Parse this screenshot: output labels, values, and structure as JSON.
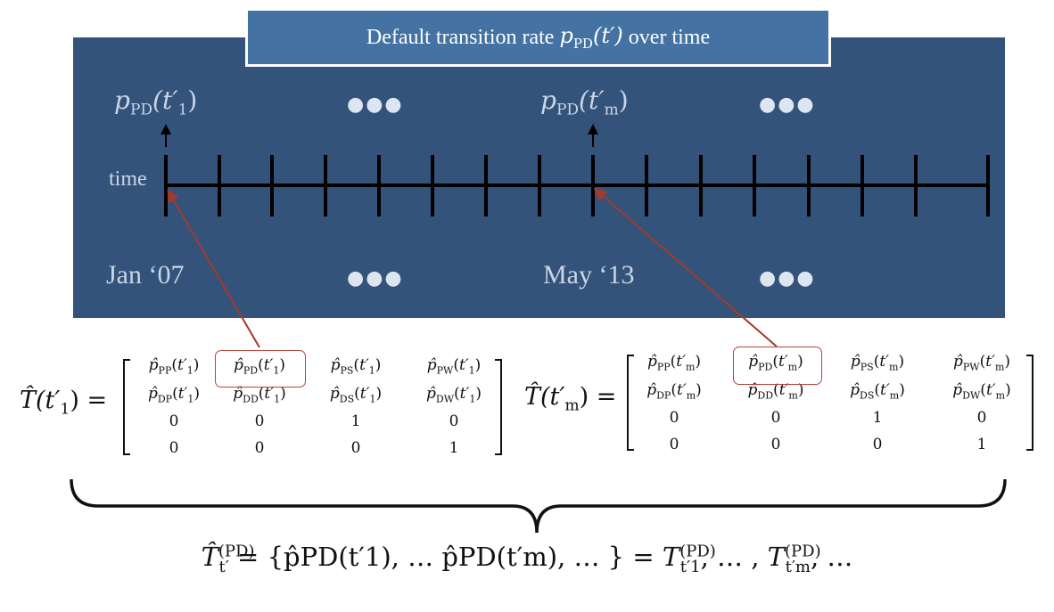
{
  "title": {
    "text_before": "Default transition rate",
    "math_symbol": "p",
    "math_subscript": "PD",
    "math_arg": "(t′)",
    "text_after": "over time"
  },
  "timeline": {
    "axis_label": "time",
    "marker_first": {
      "symbol": "p",
      "sub": "PD",
      "arg": "(t′",
      "arg_sub": "1",
      "close": ")"
    },
    "marker_m": {
      "symbol": "p",
      "sub": "PD",
      "arg": "(t′",
      "arg_sub": "m",
      "close": ")"
    },
    "date_start": "Jan ‘07",
    "date_m": "May ‘13",
    "ellipsis": "●●●"
  },
  "matrix_first": {
    "lhs": "T̂(t′",
    "lhs_sub": "1",
    "lhs_close": ") =",
    "rows": [
      [
        "p̂PP(t′1)",
        "p̂PD(t′1)",
        "p̂PS(t′1)",
        "p̂PW(t′1)"
      ],
      [
        "p̂DP(t′1)",
        "p̂DD(t′1)",
        "p̂DS(t′1)",
        "p̂DW(t′1)"
      ],
      [
        "0",
        "0",
        "1",
        "0"
      ],
      [
        "0",
        "0",
        "0",
        "1"
      ]
    ]
  },
  "matrix_m": {
    "lhs": "T̂(t′",
    "lhs_sub": "m",
    "lhs_close": ") =",
    "rows": [
      [
        "p̂PP(t′m)",
        "p̂PD(t′m)",
        "p̂PS(t′m)",
        "p̂PW(t′m)"
      ],
      [
        "p̂DP(t′m)",
        "p̂DD(t′m)",
        "p̂DS(t′m)",
        "p̂DW(t′m)"
      ],
      [
        "0",
        "0",
        "1",
        "0"
      ],
      [
        "0",
        "0",
        "0",
        "1"
      ]
    ]
  },
  "summary": {
    "lhs": "T̂",
    "lhs_sup": "(PD)",
    "lhs_sub": "t′",
    "middle": " = {p̂PD(t′1), … p̂PD(t′m), … } = ",
    "rhs_a": "T",
    "rhs_a_sup": "(PD)",
    "rhs_a_sub": "t′1",
    "rhs_sep": ", … , ",
    "rhs_b": "T",
    "rhs_b_sup": "(PD)",
    "rhs_b_sub": "t′m",
    "rhs_end": ", …"
  },
  "colors": {
    "panel": "#34537a",
    "title_box": "#4472a2",
    "label_text": "#c9d6e6",
    "arrow": "#a23a2e"
  }
}
